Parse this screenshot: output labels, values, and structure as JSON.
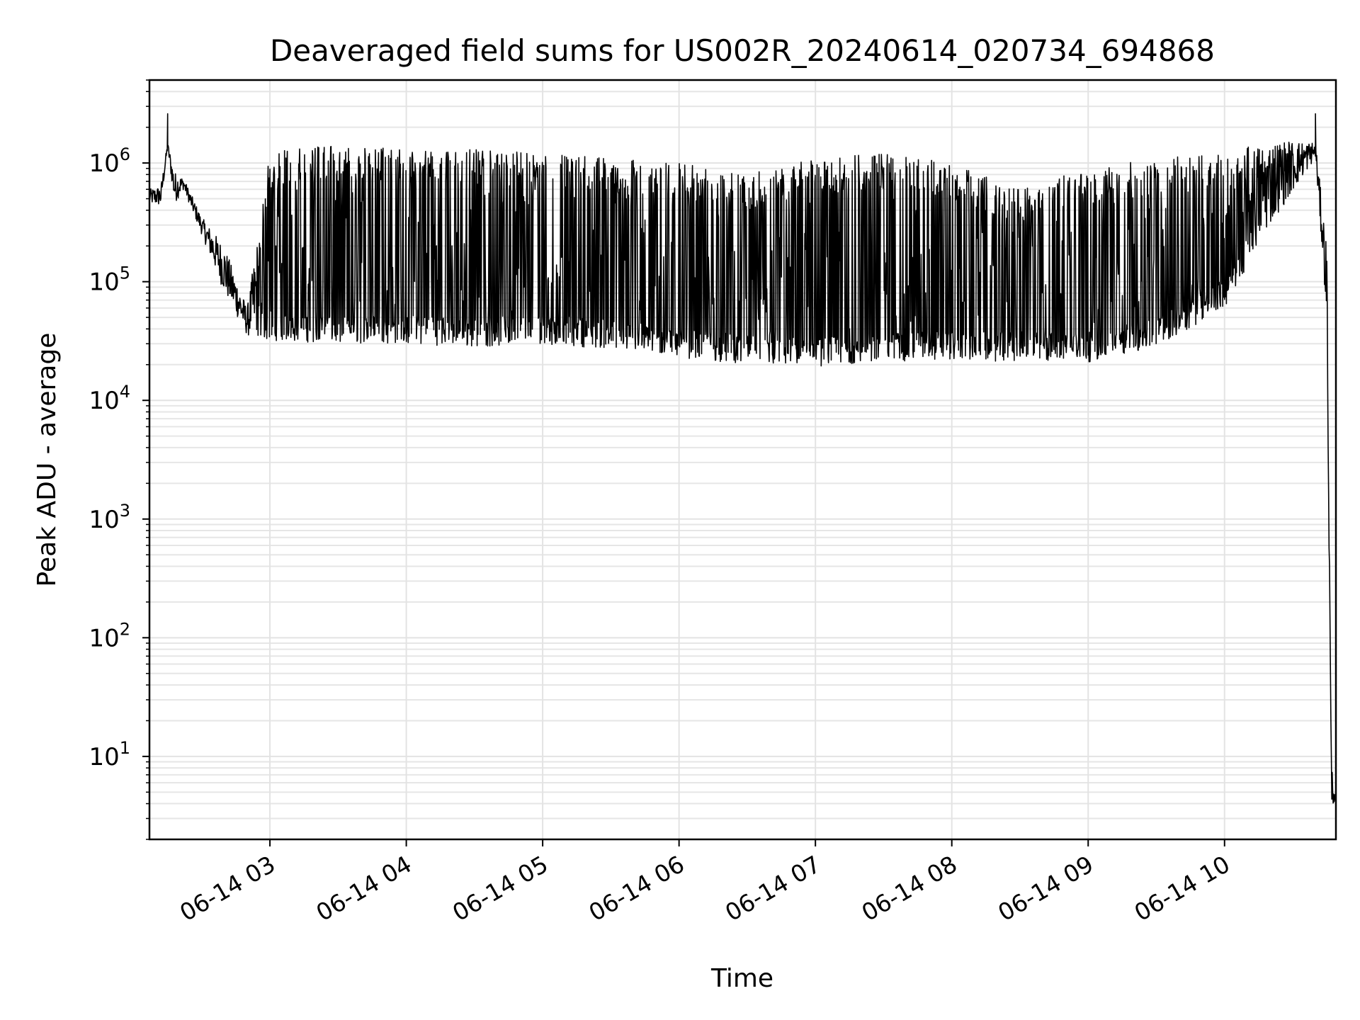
{
  "chart_data": {
    "type": "line",
    "title": "Deaveraged field sums for US002R_20240614_020734_694868",
    "xlabel": "Time",
    "ylabel": "Peak ADU - average",
    "yscale": "log",
    "ylim": [
      2,
      5000000
    ],
    "xlim": [
      "2024-06-14 02:07",
      "2024-06-14 10:49"
    ],
    "grid": true,
    "legend": "none",
    "line_color": "#000000",
    "x_ticks": [
      {
        "value": "2024-06-14 03:00",
        "label": "06-14 03"
      },
      {
        "value": "2024-06-14 04:00",
        "label": "06-14 04"
      },
      {
        "value": "2024-06-14 05:00",
        "label": "06-14 05"
      },
      {
        "value": "2024-06-14 06:00",
        "label": "06-14 06"
      },
      {
        "value": "2024-06-14 07:00",
        "label": "06-14 07"
      },
      {
        "value": "2024-06-14 08:00",
        "label": "06-14 08"
      },
      {
        "value": "2024-06-14 09:00",
        "label": "06-14 09"
      },
      {
        "value": "2024-06-14 10:00",
        "label": "06-14 10"
      }
    ],
    "y_ticks": [
      {
        "value": 10,
        "base": "10",
        "exp": "1"
      },
      {
        "value": 100,
        "base": "10",
        "exp": "2"
      },
      {
        "value": 1000,
        "base": "10",
        "exp": "3"
      },
      {
        "value": 10000,
        "base": "10",
        "exp": "4"
      },
      {
        "value": 100000,
        "base": "10",
        "exp": "5"
      },
      {
        "value": 1000000,
        "base": "10",
        "exp": "6"
      }
    ],
    "series": [
      {
        "trend_points": [
          {
            "x": "2024-06-14 02:07",
            "low": 450000,
            "high": 600000
          },
          {
            "x": "2024-06-14 02:12",
            "low": 430000,
            "high": 650000
          },
          {
            "x": "2024-06-14 02:15",
            "low": 1300000,
            "high": 1500000,
            "spike": 2600000
          },
          {
            "x": "2024-06-14 02:18",
            "low": 450000,
            "high": 850000
          },
          {
            "x": "2024-06-14 02:22",
            "low": 600000,
            "high": 750000
          },
          {
            "x": "2024-06-14 02:30",
            "low": 250000,
            "high": 350000
          },
          {
            "x": "2024-06-14 02:40",
            "low": 80000,
            "high": 200000
          },
          {
            "x": "2024-06-14 02:50",
            "low": 35000,
            "high": 60000
          },
          {
            "x": "2024-06-14 03:00",
            "low": 32000,
            "high": 1300000
          },
          {
            "x": "2024-06-14 03:30",
            "low": 30000,
            "high": 1400000
          },
          {
            "x": "2024-06-14 04:00",
            "low": 30000,
            "high": 1300000
          },
          {
            "x": "2024-06-14 04:30",
            "low": 28000,
            "high": 1300000
          },
          {
            "x": "2024-06-14 05:00",
            "low": 30000,
            "high": 1200000
          },
          {
            "x": "2024-06-14 05:30",
            "low": 27000,
            "high": 1100000
          },
          {
            "x": "2024-06-14 06:00",
            "low": 23000,
            "high": 1000000
          },
          {
            "x": "2024-06-14 06:30",
            "low": 20000,
            "high": 800000
          },
          {
            "x": "2024-06-14 07:00",
            "low": 19000,
            "high": 1100000
          },
          {
            "x": "2024-06-14 07:30",
            "low": 21000,
            "high": 1200000
          },
          {
            "x": "2024-06-14 08:00",
            "low": 22000,
            "high": 1000000
          },
          {
            "x": "2024-06-14 08:30",
            "low": 21000,
            "high": 600000
          },
          {
            "x": "2024-06-14 09:00",
            "low": 21000,
            "high": 900000
          },
          {
            "x": "2024-06-14 09:30",
            "low": 28000,
            "high": 1100000
          },
          {
            "x": "2024-06-14 10:00",
            "low": 60000,
            "high": 1200000
          },
          {
            "x": "2024-06-14 10:20",
            "low": 300000,
            "high": 1600000
          },
          {
            "x": "2024-06-14 10:40",
            "low": 1100000,
            "high": 1500000,
            "spike": 2600000
          },
          {
            "x": "2024-06-14 10:45",
            "low": 50000,
            "high": 200000
          },
          {
            "x": "2024-06-14 10:47",
            "low": 4,
            "high": 10
          },
          {
            "x": "2024-06-14 10:49",
            "low": 4,
            "high": 4
          }
        ]
      }
    ]
  }
}
